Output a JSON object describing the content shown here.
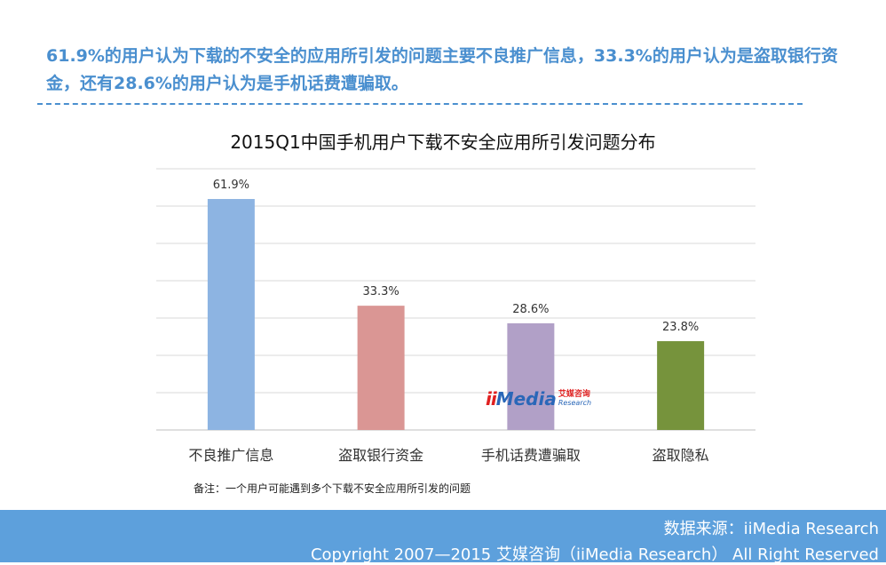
{
  "headline": "61.9%的用户认为下载的不安全的应用所引发的问题主要不良推广信息，33.3%的用户认为是盗取银行资金，还有28.6%的用户认为是手机话费遭骗取。",
  "note": "备注：一个用户可能遇到多个下载不安全应用所引发的问题",
  "footer": {
    "source": "数据来源：iiMedia Research",
    "copyright": "Copyright 2007—2015 艾媒咨询（iiMedia Research） All Right Reserved"
  },
  "watermark": {
    "brand": "ii",
    "media": "Media",
    "cn": "艾媒咨询",
    "en": "Research"
  },
  "chart_data": {
    "type": "bar",
    "title": "2015Q1中国手机用户下载不安全应用所引发问题分布",
    "categories": [
      "不良推广信息",
      "盗取银行资金",
      "手机话费遭骗取",
      "盗取隐私"
    ],
    "values": [
      61.9,
      33.3,
      28.6,
      23.8
    ],
    "value_labels": [
      "61.9%",
      "33.3%",
      "28.6%",
      "23.8%"
    ],
    "colors": [
      "#8db4e2",
      "#da9694",
      "#b1a0c7",
      "#76933c"
    ],
    "ylim": [
      0,
      70
    ],
    "grid": true,
    "gridline_count": 7,
    "xlabel": "",
    "ylabel": ""
  }
}
